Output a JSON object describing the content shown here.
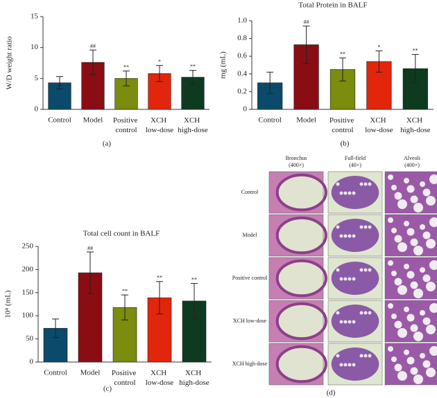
{
  "chart_data": [
    {
      "type": "bar",
      "panel_label": "(a)",
      "ylabel": "W/D weight ratio",
      "categories": [
        "Control",
        "Model",
        "Positive control",
        "XCH low-dose",
        "XCH high-dose"
      ],
      "values": [
        4.3,
        7.6,
        5.0,
        5.8,
        5.2
      ],
      "errors": [
        1.0,
        2.0,
        1.2,
        1.3,
        1.1
      ],
      "annotations": [
        null,
        "##",
        "**",
        "*",
        "**"
      ],
      "colors": [
        "#0b4a6a",
        "#8a0d14",
        "#7b8c0e",
        "#e1260c",
        "#0e3a1f"
      ],
      "ylim": [
        0,
        15
      ],
      "yticks": [
        0,
        5,
        10,
        15
      ]
    },
    {
      "type": "bar",
      "panel_label": "(b)",
      "title": "Total Protein in BALF",
      "ylabel": "mg (mL)",
      "categories": [
        "Control",
        "Model",
        "Positive control",
        "XCH low-dose",
        "XCH high-dose"
      ],
      "values": [
        0.3,
        0.73,
        0.45,
        0.54,
        0.46
      ],
      "errors": [
        0.12,
        0.21,
        0.13,
        0.12,
        0.16
      ],
      "annotations": [
        null,
        "##",
        "**",
        "*",
        "**"
      ],
      "colors": [
        "#0b4a6a",
        "#8a0d14",
        "#7b8c0e",
        "#e1260c",
        "#0e3a1f"
      ],
      "ylim": [
        0,
        1
      ],
      "yticks": [
        0,
        0.2,
        0.4,
        0.6,
        0.8,
        {
          "value": 1,
          "label": "1.0"
        }
      ]
    },
    {
      "type": "bar",
      "panel_label": "(c)",
      "title": "Total cell count in BALF",
      "ylabel": "10⁴ (mL)",
      "categories": [
        "Control",
        "Model",
        "Positive control",
        "XCH low-dose",
        "XCH high-dose"
      ],
      "values": [
        73,
        193,
        118,
        139,
        132
      ],
      "errors": [
        20,
        45,
        27,
        35,
        38
      ],
      "annotations": [
        null,
        "##",
        "**",
        "**",
        "**"
      ],
      "colors": [
        "#0b4a6a",
        "#8a0d14",
        "#7b8c0e",
        "#e1260c",
        "#0e3a1f"
      ],
      "ylim": [
        0,
        250
      ],
      "yticks": [
        0,
        50,
        100,
        150,
        200,
        250
      ]
    }
  ],
  "histology": {
    "panel_label": "(d)",
    "columns": [
      {
        "name": "Bronchus",
        "magnification": "(400×)"
      },
      {
        "name": "Full-field",
        "magnification": "(40×)"
      },
      {
        "name": "Alveoli",
        "magnification": "(400×)"
      }
    ],
    "rows": [
      "Control",
      "Model",
      "Positive control",
      "XCH low-dose",
      "XCH high-dose"
    ]
  }
}
